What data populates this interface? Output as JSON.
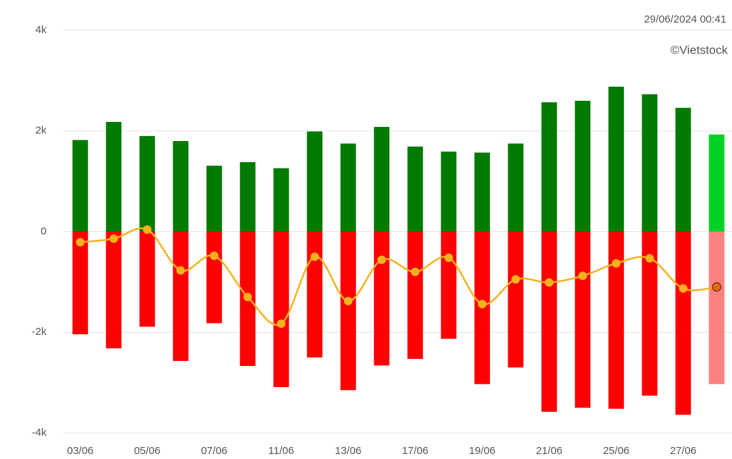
{
  "chart_data": {
    "type": "bar",
    "annotations": [
      "29/06/2024 00:41",
      "©Vietstock"
    ],
    "categories": [
      "03/06",
      null,
      "05/06",
      null,
      "07/06",
      null,
      "11/06",
      null,
      "13/06",
      null,
      "17/06",
      null,
      "19/06",
      null,
      "21/06",
      null,
      "25/06",
      null,
      "27/06",
      null
    ],
    "series": [
      {
        "type": "bar",
        "color": "#007a00",
        "colors": [
          "#007a00",
          "#007a00",
          "#007a00",
          "#007a00",
          "#007a00",
          "#007a00",
          "#007a00",
          "#007a00",
          "#007a00",
          "#007a00",
          "#007a00",
          "#007a00",
          "#007a00",
          "#007a00",
          "#007a00",
          "#007a00",
          "#007a00",
          "#007a00",
          "#007a00",
          "#00d223"
        ],
        "values": [
          1820,
          2180,
          1900,
          1800,
          1310,
          1380,
          1260,
          1990,
          1750,
          2080,
          1690,
          1590,
          1570,
          1750,
          2570,
          2600,
          2880,
          2730,
          2460,
          1930
        ]
      },
      {
        "type": "bar",
        "color": "#ff0000",
        "colors": [
          "#ff0000",
          "#ff0000",
          "#ff0000",
          "#ff0000",
          "#ff0000",
          "#ff0000",
          "#ff0000",
          "#ff0000",
          "#ff0000",
          "#ff0000",
          "#ff0000",
          "#ff0000",
          "#ff0000",
          "#ff0000",
          "#ff0000",
          "#ff0000",
          "#ff0000",
          "#ff0000",
          "#ff0000",
          "#ff8080"
        ],
        "values": [
          -2040,
          -2320,
          -1890,
          -2570,
          -1820,
          -2670,
          -3090,
          -2500,
          -3150,
          -2660,
          -2530,
          -2130,
          -3030,
          -2700,
          -3580,
          -3500,
          -3520,
          -3260,
          -3640,
          -3030
        ]
      },
      {
        "type": "line",
        "color": "#f5b21e",
        "last_marker_color": "#e06a1a",
        "values": [
          -210,
          -140,
          40,
          -770,
          -480,
          -1300,
          -1830,
          -500,
          -1380,
          -560,
          -800,
          -520,
          -1440,
          -950,
          -1010,
          -880,
          -630,
          -530,
          -1130,
          -1100
        ]
      }
    ],
    "ylim": [
      -4000,
      4000
    ],
    "yticks": [
      {
        "value": -4000,
        "label": "-4k"
      },
      {
        "value": -2000,
        "label": "-2k"
      },
      0,
      {
        "value": 2000,
        "label": "2k"
      },
      {
        "value": 4000,
        "label": "4k"
      }
    ],
    "grid": true
  }
}
